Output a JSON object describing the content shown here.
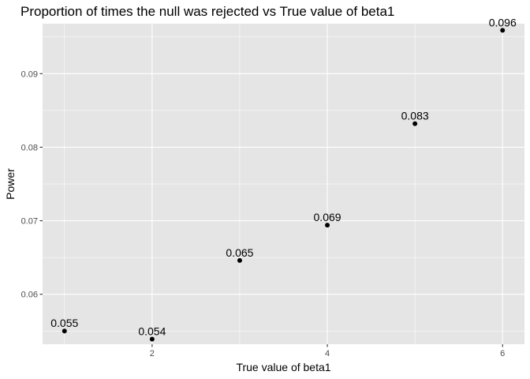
{
  "chart_data": {
    "type": "scatter",
    "title": "Proportion of times the null was rejected vs True value of beta1",
    "xlabel": "True value of beta1",
    "ylabel": "Power",
    "x": [
      1,
      2,
      3,
      4,
      5,
      6
    ],
    "y": [
      0.055,
      0.0539,
      0.0646,
      0.0694,
      0.0832,
      0.0959
    ],
    "point_labels": [
      "0.055",
      "0.054",
      "0.065",
      "0.069",
      "0.083",
      "0.096"
    ],
    "xlim": [
      0.75,
      6.25
    ],
    "ylim": [
      0.0532,
      0.0968
    ],
    "x_major_ticks": [
      2,
      4,
      6
    ],
    "x_tick_labels": [
      "2",
      "4",
      "6"
    ],
    "x_minor_ticks": [
      1,
      3,
      5
    ],
    "y_major_ticks": [
      0.06,
      0.07,
      0.08,
      0.09
    ],
    "y_tick_labels": [
      "0.06",
      "0.07",
      "0.08",
      "0.09"
    ],
    "y_minor_ticks": [
      0.055,
      0.065,
      0.075,
      0.085,
      0.095
    ],
    "grid": true,
    "legend": "none",
    "colors": {
      "panel": "#e5e5e5",
      "grid": "#ffffff",
      "point": "#000000"
    }
  }
}
